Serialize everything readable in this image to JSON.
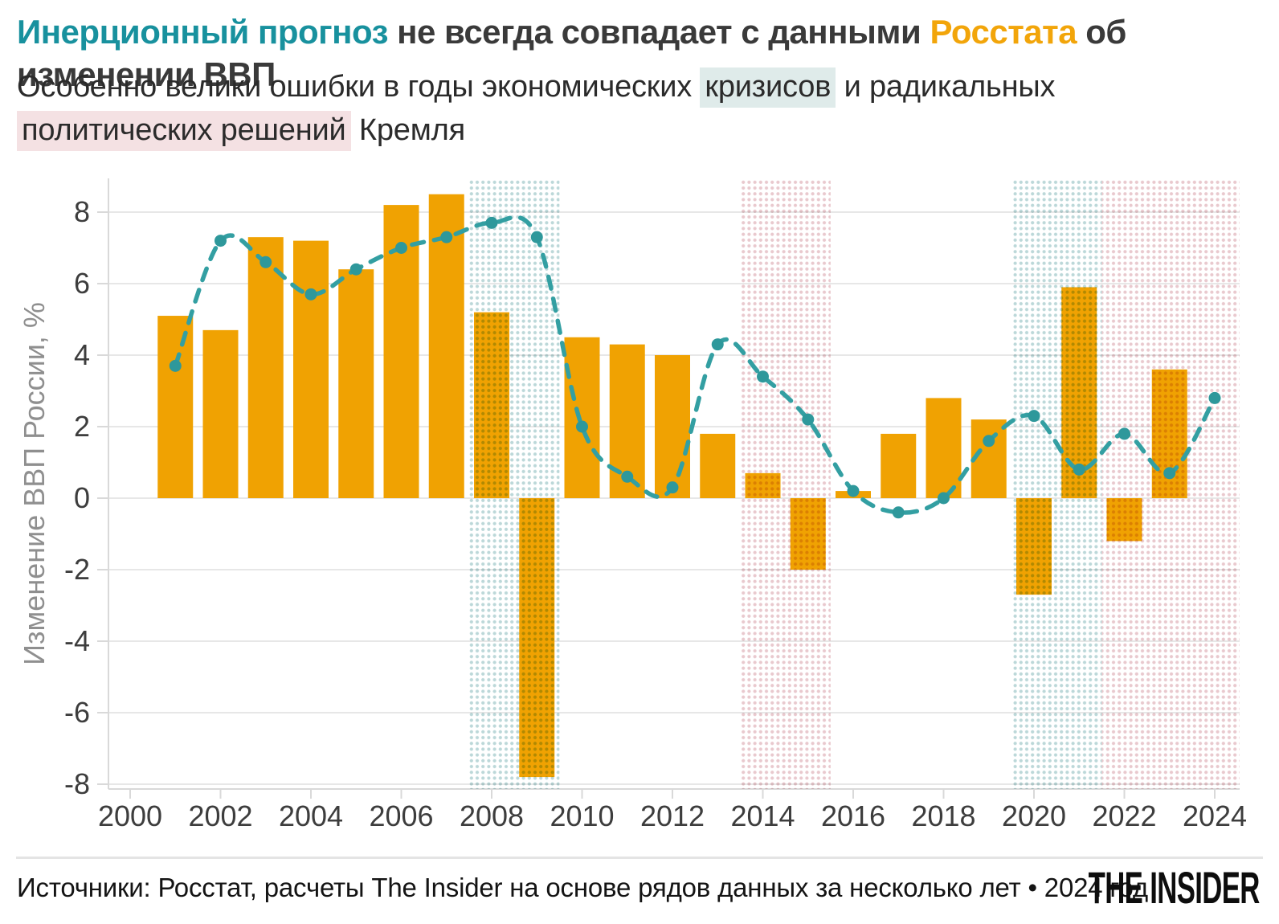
{
  "header": {
    "title_part1": "Инерционный прогноз",
    "title_part2": " не всегда совпадает с данными ",
    "title_part3": "Росстата",
    "title_part4": " об изменении ВВП",
    "subtitle_part1": "Особенно велики ошибки в годы экономических ",
    "subtitle_hl1": "кризисов",
    "subtitle_part2": " и радикальных ",
    "subtitle_hl2": "политических решений",
    "subtitle_part3": " Кремля"
  },
  "footer": {
    "source": "Источники: Росстат, расчеты The Insider на основе рядов данных за несколько лет • 2024 год",
    "logo": "THE INSIDER"
  },
  "colors": {
    "bar_orange": "#f0a202",
    "line_teal": "#339fa2",
    "point_teal": "#2e989b",
    "title_teal": "#18919e",
    "title_orange": "#f2a50a",
    "highlight_teal_bg": "#dfebea",
    "highlight_pink_bg": "#f4e1e3",
    "zone_teal_dot": "#bcd8d9",
    "zone_pink_dot": "#e9c9ce",
    "grid": "#e7e7e7",
    "spine": "#d9d9d9",
    "tick_text": "#3d3d3d",
    "axis_title_text": "#8f8f8f"
  },
  "chart_data": {
    "type": "bar+line",
    "ylabel": "Изменение ВВП России, %",
    "x": [
      2001,
      2002,
      2003,
      2004,
      2005,
      2006,
      2007,
      2008,
      2009,
      2010,
      2011,
      2012,
      2013,
      2014,
      2015,
      2016,
      2017,
      2018,
      2019,
      2020,
      2021,
      2022,
      2023,
      2024
    ],
    "series": [
      {
        "name": "Росстат",
        "type": "bar",
        "color": "#f0a202",
        "values": [
          5.1,
          4.7,
          7.3,
          7.2,
          6.4,
          8.2,
          8.5,
          5.2,
          -7.8,
          4.5,
          4.3,
          4.0,
          1.8,
          0.7,
          -2.0,
          0.2,
          1.8,
          2.8,
          2.2,
          -2.7,
          5.9,
          -1.2,
          3.6,
          null
        ]
      },
      {
        "name": "Инерционный прогноз",
        "type": "line",
        "color": "#339fa2",
        "values": [
          3.7,
          7.2,
          6.6,
          5.7,
          6.4,
          7.0,
          7.3,
          7.7,
          7.3,
          2.0,
          0.6,
          0.3,
          4.3,
          3.4,
          2.2,
          0.2,
          -0.4,
          0.0,
          1.6,
          2.3,
          0.8,
          1.8,
          0.7,
          2.8
        ]
      }
    ],
    "xticks": [
      2000,
      2002,
      2004,
      2006,
      2008,
      2010,
      2012,
      2014,
      2016,
      2018,
      2020,
      2022,
      2024
    ],
    "yticks": [
      -8,
      -6,
      -4,
      -2,
      0,
      2,
      4,
      6,
      8
    ],
    "ylim": [
      -8.6,
      9
    ],
    "xlim": [
      2000,
      2024.55
    ],
    "grid": true,
    "legend_position": "none",
    "zones": [
      {
        "kind": "crisis",
        "from": 2007.5,
        "to": 2009.5,
        "dot_color": "#bcd8d9"
      },
      {
        "kind": "policy",
        "from": 2013.5,
        "to": 2015.5,
        "dot_color": "#e9c9ce"
      },
      {
        "kind": "crisis",
        "from": 2019.5,
        "to": 2021.5,
        "dot_color": "#bcd8d9"
      },
      {
        "kind": "policy",
        "from": 2021.5,
        "to": 2024.55,
        "dot_color": "#e9c9ce"
      }
    ]
  }
}
